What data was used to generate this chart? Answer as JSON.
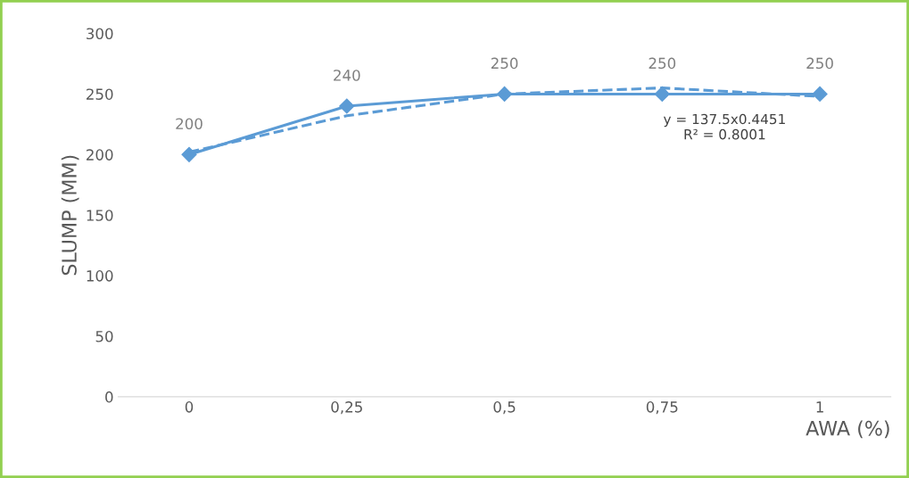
{
  "chart_data": {
    "type": "line",
    "xlabel": "AWA (%)",
    "ylabel": "SLUMP (MM)",
    "categories": [
      "0",
      "0,25",
      "0,5",
      "0,75",
      "1"
    ],
    "series": [
      {
        "color": "#5b9bd5",
        "values": [
          200,
          240,
          250,
          250,
          250
        ],
        "value_labels": [
          "200",
          "240",
          "250",
          "250",
          "250"
        ],
        "marker": "diamond",
        "line_style": "solid"
      },
      {
        "color": "#5b9bd5",
        "values": [
          202,
          232,
          250,
          255,
          248
        ],
        "marker": "none",
        "line_style": "dashed"
      }
    ],
    "ylim": [
      0,
      300
    ],
    "yticks": [
      0,
      50,
      100,
      150,
      200,
      250,
      300
    ],
    "grid": false,
    "legend": false,
    "annotations": [
      "y = 137.5x0.4451\nR² = 0.8001"
    ]
  }
}
